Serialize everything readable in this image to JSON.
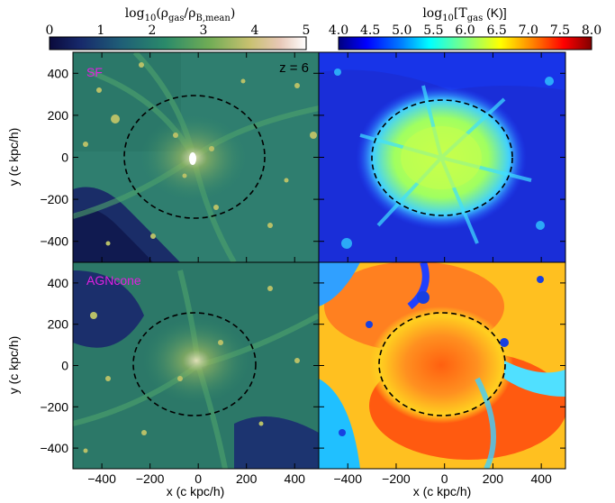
{
  "figure": {
    "density_colorbar": {
      "title_prefix": "log",
      "title_sub": "10",
      "title_rest": "(ρ",
      "title_sub2": "gas",
      "title_mid": "/ρ",
      "title_sub3": "B,mean",
      "title_end": ")",
      "ticks": [
        "0",
        "1",
        "2",
        "3",
        "4",
        "5"
      ],
      "range": [
        0,
        5
      ]
    },
    "temperature_colorbar": {
      "title_prefix": "log",
      "title_sub": "10",
      "title_rest": "[T",
      "title_sub2": "gas",
      "title_end": " (K)]",
      "ticks": [
        "4.0",
        "4.5",
        "5.0",
        "5.5",
        "6.0",
        "6.5",
        "7.0",
        "7.5",
        "8.0"
      ],
      "range": [
        4.0,
        8.0
      ]
    },
    "panels": {
      "top_left_label": "SF",
      "bottom_left_label": "AGNcone",
      "redshift": "z = 6"
    },
    "label_color": "#e020e0",
    "axes": {
      "xlabel": "x (c kpc/h)",
      "ylabel": "y (c kpc/h)",
      "x_ticks": [
        "−400",
        "−200",
        "0",
        "200",
        "400"
      ],
      "y_ticks": [
        "400",
        "200",
        "0",
        "−200",
        "−400"
      ]
    }
  },
  "chart_data": {
    "type": "heatmap",
    "title": "",
    "xlabel": "x (c kpc/h)",
    "ylabel": "y (c kpc/h)",
    "xlim": [
      -520,
      500
    ],
    "ylim": [
      -500,
      500
    ],
    "x_ticks": [
      -400,
      -200,
      0,
      200,
      400
    ],
    "y_ticks": [
      400,
      200,
      0,
      -200,
      -400
    ],
    "panels": [
      {
        "name": "SF density",
        "quantity": "log10(rho_gas/rho_B,mean)",
        "colormap_range": [
          0,
          5
        ],
        "virial_circle_center": [
          -10,
          0
        ],
        "virial_circle_radius": 280
      },
      {
        "name": "SF temperature",
        "quantity": "log10[T_gas (K)]",
        "colormap_range": [
          4.0,
          8.0
        ],
        "virial_circle_center": [
          -10,
          0
        ],
        "virial_circle_radius": 280
      },
      {
        "name": "AGNcone density",
        "quantity": "log10(rho_gas/rho_B,mean)",
        "colormap_range": [
          0,
          5
        ],
        "virial_circle_center": [
          -10,
          0
        ],
        "virial_circle_radius": 245
      },
      {
        "name": "AGNcone temperature",
        "quantity": "log10[T_gas (K)]",
        "colormap_range": [
          4.0,
          8.0
        ],
        "virial_circle_center": [
          -10,
          0
        ],
        "virial_circle_radius": 245
      }
    ]
  }
}
